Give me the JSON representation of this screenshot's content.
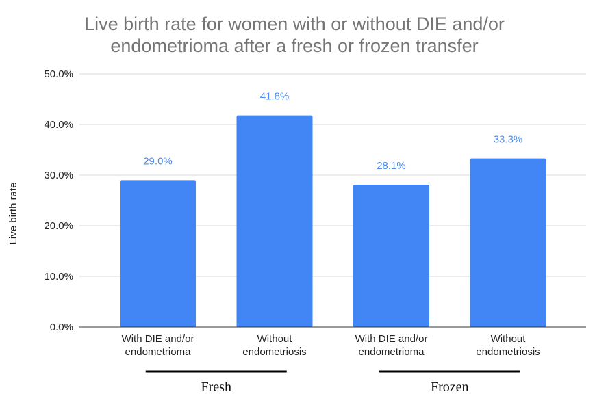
{
  "chart_data": {
    "type": "bar",
    "title_lines": [
      "Live birth rate for women with or without DIE and/or",
      "endometrioma after a fresh or frozen transfer"
    ],
    "ylabel": "Live birth rate",
    "ylim": [
      0,
      50
    ],
    "yticks": [
      0,
      10,
      20,
      30,
      40,
      50
    ],
    "ytick_labels": [
      "0.0%",
      "10.0%",
      "20.0%",
      "30.0%",
      "40.0%",
      "50.0%"
    ],
    "grid": true,
    "bar_color": "#4285f4",
    "data_label_color": "#4a8cf0",
    "categories": [
      [
        "With DIE and/or",
        "endometrioma"
      ],
      [
        "Without",
        "endometriosis"
      ],
      [
        "With DIE and/or",
        "endometrioma"
      ],
      [
        "Without",
        "endometriosis"
      ]
    ],
    "values": [
      29.0,
      41.8,
      28.1,
      33.3
    ],
    "data_labels": [
      "29.0%",
      "41.8%",
      "28.1%",
      "33.3%"
    ],
    "groups": [
      {
        "label": "Fresh",
        "bars": [
          0,
          1
        ]
      },
      {
        "label": "Frozen",
        "bars": [
          2,
          3
        ]
      }
    ]
  }
}
